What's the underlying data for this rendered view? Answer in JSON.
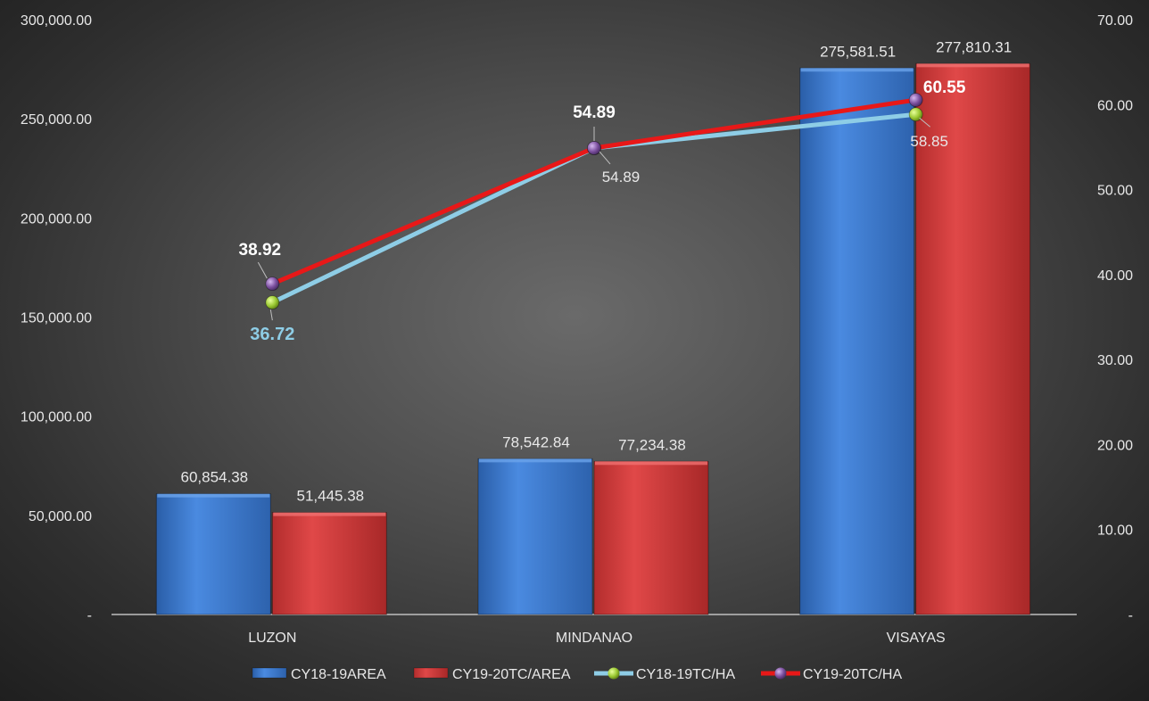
{
  "chart_data": {
    "type": "bar",
    "categories": [
      "LUZON",
      "MINDANAO",
      "VISAYAS"
    ],
    "series": [
      {
        "name": "CY18-19AREA",
        "kind": "bar",
        "axis": "left",
        "color": "#3f7fd0",
        "values": [
          60854.38,
          78542.84,
          275581.51
        ],
        "labels": [
          "60,854.38",
          "78,542.84",
          "275,581.51"
        ]
      },
      {
        "name": "CY19-20TC/AREA",
        "kind": "bar",
        "axis": "left",
        "color": "#d94040",
        "values": [
          51445.38,
          77234.38,
          277810.31
        ],
        "labels": [
          "51,445.38",
          "77,234.38",
          "277,810.31"
        ]
      },
      {
        "name": "CY18-19TC/HA",
        "kind": "line",
        "axis": "right",
        "color": "#8ecde6",
        "marker_color": "#a6d23c",
        "values": [
          36.72,
          54.89,
          58.85
        ],
        "labels": [
          "36.72",
          "54.89",
          "58.85"
        ]
      },
      {
        "name": "CY19-20TC/HA",
        "kind": "line",
        "axis": "right",
        "color": "#e81818",
        "marker_color": "#7b4f9e",
        "values": [
          38.92,
          54.89,
          60.55
        ],
        "labels": [
          "38.92",
          "54.89",
          "60.55"
        ]
      }
    ],
    "y_left": {
      "ylim": [
        0,
        300000
      ],
      "ticks": [
        "-",
        "50,000.00",
        "100,000.00",
        "150,000.00",
        "200,000.00",
        "250,000.00",
        "300,000.00"
      ]
    },
    "y_right": {
      "ylim": [
        0,
        70
      ],
      "ticks": [
        "-",
        "10.00",
        "20.00",
        "30.00",
        "40.00",
        "50.00",
        "60.00",
        "70.00"
      ]
    },
    "grid": false,
    "legend": "bottom"
  }
}
